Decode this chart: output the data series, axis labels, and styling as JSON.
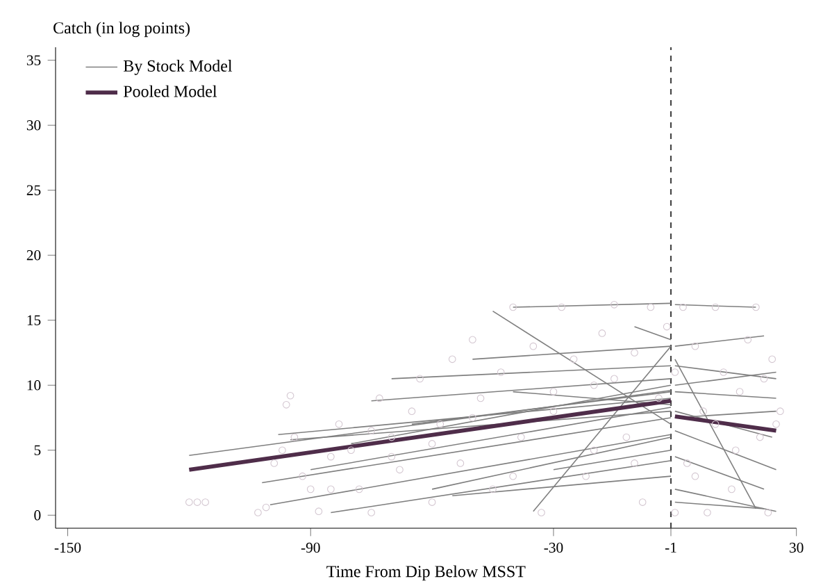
{
  "chart_data": {
    "type": "line",
    "xlabel": "Time From Dip Below MSST",
    "ylabel": "Catch (in log points)",
    "xlim": [
      -153,
      30
    ],
    "ylim": [
      -1,
      36
    ],
    "xticks": [
      -150,
      -90,
      -30,
      -1,
      30
    ],
    "yticks": [
      0,
      5,
      10,
      15,
      20,
      25,
      30,
      35
    ],
    "legend": "top left",
    "ref_lines": [
      {
        "axis": "x",
        "value": -1,
        "color": "#444444",
        "line_style": "dashed"
      }
    ],
    "series": [
      {
        "type": "scatter",
        "marker": "circle",
        "color": "#d3c6d0",
        "x": [
          -120,
          -118,
          -116,
          -103,
          -101,
          -99,
          -97,
          -96,
          -95,
          -94,
          -92,
          -90,
          -88,
          -85,
          -83,
          -80,
          -78,
          -75,
          -73,
          -70,
          -68,
          -65,
          -63,
          -60,
          -58,
          -55,
          -53,
          -50,
          -48,
          -45,
          -43,
          -40,
          -38,
          -35,
          -33,
          -30,
          -28,
          -25,
          -22,
          -20,
          -18,
          -15,
          -12,
          -10,
          -8,
          -6,
          -4,
          -2,
          0,
          0,
          2,
          3,
          5,
          7,
          8,
          10,
          12,
          14,
          16,
          18,
          20,
          21,
          22,
          23,
          24,
          25,
          26,
          -60,
          -75,
          -85,
          -40,
          -20,
          -10,
          5,
          15,
          -70,
          -50,
          -30,
          -15,
          10
        ],
        "values": [
          1,
          1,
          1,
          0.2,
          0.6,
          4,
          5,
          8.5,
          9.2,
          6,
          3,
          2,
          0.3,
          4.5,
          7,
          5,
          2,
          0.2,
          9,
          6,
          3.5,
          8,
          10.5,
          1,
          7,
          12,
          4,
          13.5,
          9,
          2,
          11,
          16,
          6,
          13,
          0.2,
          8,
          16,
          12,
          3,
          10,
          14,
          16.2,
          6,
          12.5,
          1,
          16,
          9,
          14.5,
          0.2,
          11,
          16,
          4,
          13,
          8,
          0.2,
          16,
          11,
          2,
          9.5,
          13.5,
          16,
          6,
          10.5,
          0.2,
          12,
          7,
          8,
          5.5,
          6.5,
          2,
          3,
          5,
          4,
          3,
          5,
          4.5,
          7.5,
          9.5,
          10.5,
          7
        ]
      },
      {
        "name": "By Stock Model",
        "color": "#7f7f7f",
        "x": [
          -120,
          -1
        ],
        "values": [
          4.6,
          9.6
        ]
      },
      {
        "color": "#7f7f7f",
        "x": [
          -98,
          -1
        ],
        "values": [
          6.2,
          9
        ]
      },
      {
        "color": "#7f7f7f",
        "x": [
          -102,
          -1
        ],
        "values": [
          2.5,
          7.5
        ]
      },
      {
        "color": "#7f7f7f",
        "x": [
          -100,
          -1
        ],
        "values": [
          0.8,
          6.2
        ]
      },
      {
        "color": "#7f7f7f",
        "x": [
          -85,
          -1
        ],
        "values": [
          0.2,
          4.2
        ]
      },
      {
        "color": "#7f7f7f",
        "x": [
          -70,
          -1
        ],
        "values": [
          10.5,
          11.5
        ]
      },
      {
        "color": "#7f7f7f",
        "x": [
          -75,
          -1
        ],
        "values": [
          8.8,
          10.5
        ]
      },
      {
        "color": "#7f7f7f",
        "x": [
          -45,
          -1
        ],
        "values": [
          15.7,
          7
        ]
      },
      {
        "color": "#7f7f7f",
        "x": [
          -40,
          -1
        ],
        "values": [
          16,
          16.3
        ]
      },
      {
        "color": "#7f7f7f",
        "x": [
          -35,
          -1
        ],
        "values": [
          0.3,
          13
        ]
      },
      {
        "color": "#7f7f7f",
        "x": [
          -60,
          -1
        ],
        "values": [
          2,
          6
        ]
      },
      {
        "color": "#7f7f7f",
        "x": [
          -80,
          -1
        ],
        "values": [
          5.5,
          10
        ]
      },
      {
        "color": "#7f7f7f",
        "x": [
          -90,
          -1
        ],
        "values": [
          3.5,
          8.3
        ]
      },
      {
        "color": "#7f7f7f",
        "x": [
          -50,
          -1
        ],
        "values": [
          12,
          13
        ]
      },
      {
        "color": "#7f7f7f",
        "x": [
          -65,
          -1
        ],
        "values": [
          7,
          9.5
        ]
      },
      {
        "color": "#7f7f7f",
        "x": [
          -30,
          -1
        ],
        "values": [
          3.5,
          5
        ]
      },
      {
        "color": "#7f7f7f",
        "x": [
          -10,
          -1
        ],
        "values": [
          14.5,
          13.5
        ]
      },
      {
        "color": "#7f7f7f",
        "x": [
          -55,
          -1
        ],
        "values": [
          1.5,
          3
        ]
      },
      {
        "color": "#7f7f7f",
        "x": [
          -95,
          -1
        ],
        "values": [
          5.8,
          8
        ]
      },
      {
        "color": "#7f7f7f",
        "x": [
          -40,
          -1
        ],
        "values": [
          9.5,
          8.5
        ]
      },
      {
        "color": "#7f7f7f",
        "x": [
          0,
          20
        ],
        "values": [
          16.2,
          16
        ]
      },
      {
        "color": "#7f7f7f",
        "x": [
          0,
          22
        ],
        "values": [
          13,
          13.8
        ]
      },
      {
        "color": "#7f7f7f",
        "x": [
          0,
          25
        ],
        "values": [
          11.5,
          10.5
        ]
      },
      {
        "color": "#7f7f7f",
        "x": [
          0,
          25
        ],
        "values": [
          9.5,
          9
        ]
      },
      {
        "color": "#7f7f7f",
        "x": [
          0,
          24
        ],
        "values": [
          8,
          6
        ]
      },
      {
        "color": "#7f7f7f",
        "x": [
          0,
          25
        ],
        "values": [
          6.5,
          3.5
        ]
      },
      {
        "color": "#7f7f7f",
        "x": [
          0,
          22
        ],
        "values": [
          4.5,
          2
        ]
      },
      {
        "color": "#7f7f7f",
        "x": [
          0,
          25
        ],
        "values": [
          2,
          0.3
        ]
      },
      {
        "color": "#7f7f7f",
        "x": [
          0,
          20
        ],
        "values": [
          12,
          0.5
        ]
      },
      {
        "color": "#7f7f7f",
        "x": [
          0,
          25
        ],
        "values": [
          10,
          11
        ]
      },
      {
        "color": "#7f7f7f",
        "x": [
          0,
          22
        ],
        "values": [
          1,
          0.5
        ]
      },
      {
        "color": "#7f7f7f",
        "x": [
          0,
          25
        ],
        "values": [
          7.5,
          8
        ]
      },
      {
        "name": "Pooled Model",
        "color": "#4f2d4a",
        "x": [
          -120,
          -1
        ],
        "values": [
          3.5,
          8.8
        ]
      },
      {
        "color": "#4f2d4a",
        "x": [
          0,
          25
        ],
        "values": [
          7.6,
          6.5
        ]
      }
    ]
  }
}
